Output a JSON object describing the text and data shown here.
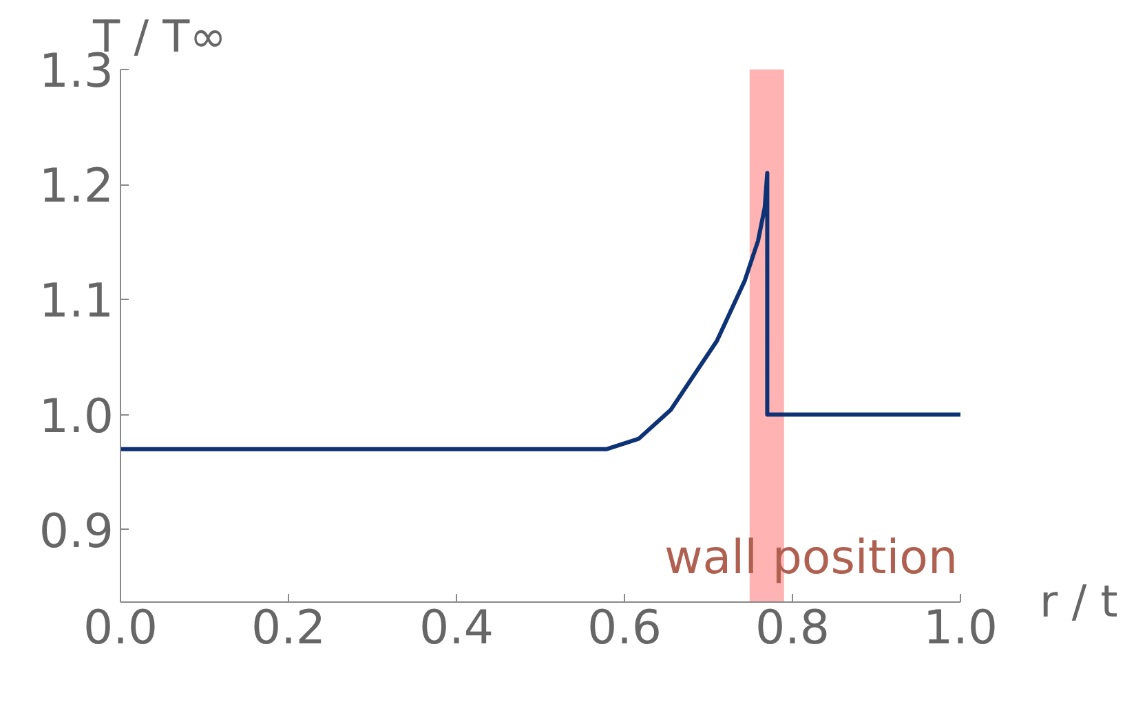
{
  "chart_data": {
    "type": "line",
    "xlabel": "r / t",
    "ylabel": "T / T∞",
    "x": [
      0.0,
      0.579,
      0.617,
      0.655,
      0.71,
      0.743,
      0.759,
      0.767,
      0.77,
      0.77,
      0.79,
      1.0
    ],
    "series": [
      {
        "color": "#0d3275",
        "values": [
          0.97,
          0.97,
          0.979,
          1.004,
          1.064,
          1.116,
          1.151,
          1.18,
          1.21,
          1.0,
          1.0,
          1.0
        ]
      }
    ],
    "xlim": [
      0.0,
      1.0
    ],
    "ylim": [
      0.837,
      1.3
    ],
    "xticks": [
      {
        "value": 0.0,
        "label": "0.0"
      },
      {
        "value": 0.2,
        "label": "0.2"
      },
      {
        "value": 0.4,
        "label": "0.4"
      },
      {
        "value": 0.6,
        "label": "0.6"
      },
      {
        "value": 0.8,
        "label": "0.8"
      },
      {
        "value": 1.0,
        "label": "1.0"
      }
    ],
    "yticks": [
      {
        "value": 0.9,
        "label": "0.9"
      },
      {
        "value": 1.0,
        "label": "1.0"
      },
      {
        "value": 1.1,
        "label": "1.1"
      },
      {
        "value": 1.2,
        "label": "1.2"
      },
      {
        "value": 1.3,
        "label": "1.3"
      }
    ],
    "bands": [
      {
        "axis": "x",
        "from": 0.749,
        "to": 0.79,
        "label": "wall position",
        "color": "#ffb3b3"
      }
    ],
    "grid": false,
    "marker": "none",
    "line_style": "solid"
  }
}
